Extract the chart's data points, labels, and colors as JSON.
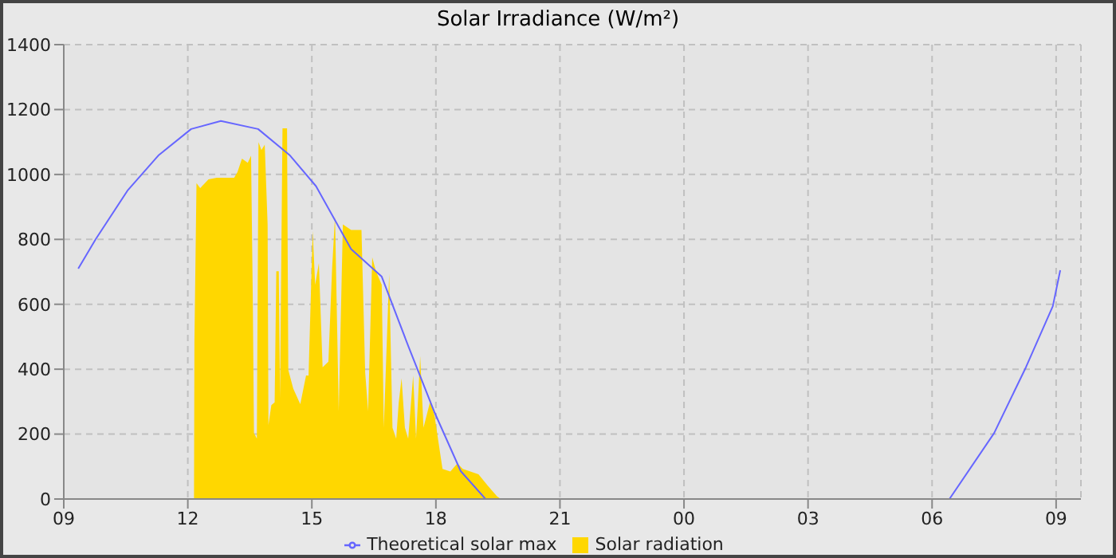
{
  "chart_data": {
    "type": "line",
    "title": "Solar Irradiance (W/m²)",
    "xlim": [
      9,
      33.6
    ],
    "xticks": [
      {
        "value": 9,
        "label": "09"
      },
      12,
      15,
      18,
      21,
      {
        "value": 24,
        "label": "00"
      },
      {
        "value": 27,
        "label": "03"
      },
      {
        "value": 30,
        "label": "06"
      },
      {
        "value": 33,
        "label": "09"
      }
    ],
    "ylim": [
      0,
      1400
    ],
    "yticks": [
      0,
      200,
      400,
      600,
      800,
      1000,
      1200,
      1400
    ],
    "grid": true,
    "legend": "bottom",
    "marker": "none",
    "line_style": "solid",
    "series": [
      {
        "name": "Theoretical solar max",
        "color": "#6666ff",
        "x": [
          9.35,
          9.77,
          10.54,
          11.3,
          12.08,
          12.8,
          13.7,
          14.46,
          15.1,
          15.95,
          16.69,
          17.33,
          17.96,
          18.6,
          19.2,
          30.42,
          31.5,
          32.27,
          32.92,
          33.1
        ],
        "values": [
          710,
          800,
          950,
          1060,
          1140,
          1165,
          1140,
          1060,
          964,
          770,
          685,
          472,
          269,
          86,
          0,
          0,
          203,
          406,
          594,
          705
        ]
      },
      {
        "name": "Solar radiation",
        "type": "area",
        "color": "#ffd700",
        "x": [
          12.15,
          12.16,
          12.21,
          12.3,
          12.5,
          12.7,
          13.12,
          13.2,
          13.31,
          13.45,
          13.53,
          13.57,
          13.6,
          13.67,
          13.71,
          13.78,
          13.86,
          13.93,
          13.95,
          14.02,
          14.1,
          14.14,
          14.2,
          14.23,
          14.29,
          14.4,
          14.43,
          14.55,
          14.72,
          14.86,
          14.92,
          15.02,
          15.08,
          15.17,
          15.26,
          15.4,
          15.49,
          15.56,
          15.65,
          15.75,
          15.95,
          16.2,
          16.29,
          16.36,
          16.46,
          16.55,
          16.69,
          16.74,
          16.87,
          16.95,
          17.04,
          17.1,
          17.17,
          17.25,
          17.33,
          17.45,
          17.52,
          17.62,
          17.7,
          17.87,
          17.97,
          18.07,
          18.16,
          18.35,
          18.52,
          18.65,
          19.03,
          19.25,
          19.48,
          19.57
        ],
        "values": [
          0,
          487,
          973,
          958,
          985,
          990,
          990,
          1007,
          1049,
          1036,
          1058,
          635,
          203,
          186,
          1100,
          1075,
          1092,
          846,
          228,
          289,
          298,
          702,
          702,
          310,
          1142,
          1142,
          398,
          340,
          292,
          381,
          380,
          826,
          660,
          727,
          406,
          423,
          711,
          871,
          271,
          846,
          829,
          829,
          389,
          271,
          745,
          702,
          660,
          220,
          694,
          220,
          186,
          296,
          372,
          220,
          186,
          381,
          186,
          440,
          220,
          305,
          254,
          169,
          93,
          85,
          110,
          93,
          76,
          42,
          8,
          0
        ]
      }
    ]
  }
}
